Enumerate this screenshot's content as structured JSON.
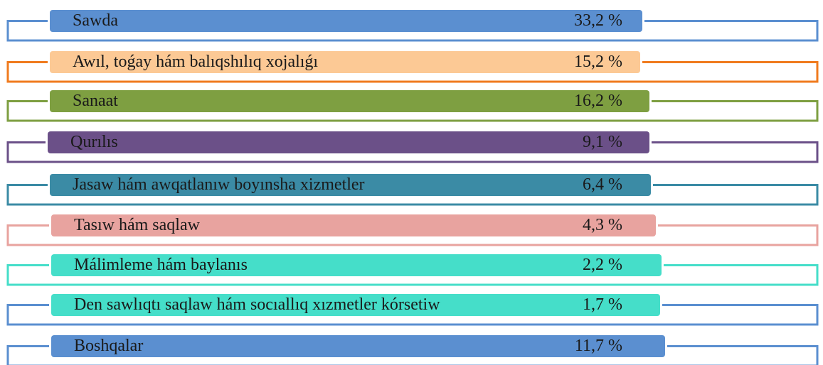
{
  "items": [
    {
      "label": "Sawda",
      "value": "33,2 %",
      "color": "#5b8fd0",
      "line_color": "#5b8fd0"
    },
    {
      "label": "Awıl, toǵay hám balıqshılıq xojalıǵı",
      "value": "15,2 %",
      "color": "#fcc995",
      "line_color": "#f07b1e"
    },
    {
      "label": "Sanaat",
      "value": "16,2 %",
      "color": "#7e9f41",
      "line_color": "#7e9f41"
    },
    {
      "label": "Qurılıs",
      "value": "9,1 %",
      "color": "#6b5088",
      "line_color": "#6b5088"
    },
    {
      "label": "Jasaw hám awqatlanıw boyınsha xizmetler",
      "value": "6,4 %",
      "color": "#3b8ba5",
      "line_color": "#3b8ba5"
    },
    {
      "label": "Tasıw hám saqlaw",
      "value": "4,3 %",
      "color": "#e8a39f",
      "line_color": "#e8a39f"
    },
    {
      "label": "Málimleme hám baylanıs",
      "value": "2,2 %",
      "color": "#45dec9",
      "line_color": "#45dec9"
    },
    {
      "label": "Den sawlıqtı saqlaw hám socıallıq xızmetler kórsetiw",
      "value": "1,7 %",
      "color": "#45dec9",
      "line_color": "#5b8fd0"
    },
    {
      "label": "Boshqalar",
      "value": "11,7 %",
      "color": "#5b8fd0",
      "line_color": "#5b8fd0"
    }
  ]
}
